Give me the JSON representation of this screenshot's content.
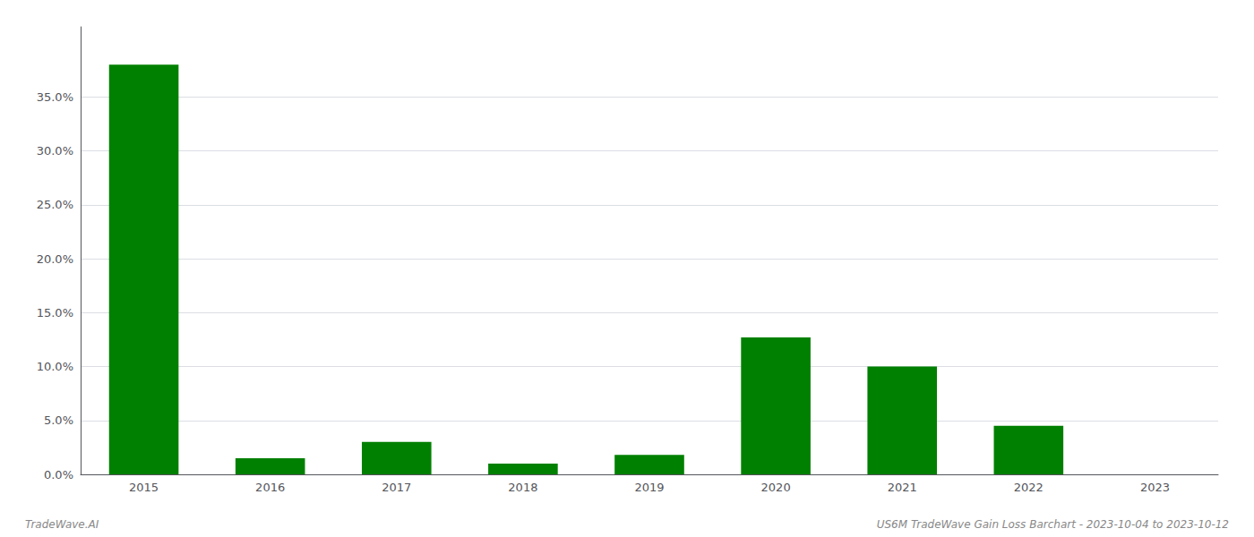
{
  "chart_data": {
    "type": "bar",
    "categories": [
      "2015",
      "2016",
      "2017",
      "2018",
      "2019",
      "2020",
      "2021",
      "2022",
      "2023"
    ],
    "values": [
      0.38,
      0.015,
      0.03,
      0.01,
      0.018,
      0.127,
      0.1,
      0.045,
      0.0
    ],
    "color": "#008000",
    "ylim": [
      0,
      0.415
    ],
    "yticks": [
      {
        "value": 0.0,
        "label": "0.0%"
      },
      {
        "value": 0.05,
        "label": "5.0%"
      },
      {
        "value": 0.1,
        "label": "10.0%"
      },
      {
        "value": 0.15,
        "label": "15.0%"
      },
      {
        "value": 0.2,
        "label": "20.0%"
      },
      {
        "value": 0.25,
        "label": "25.0%"
      },
      {
        "value": 0.3,
        "label": "30.0%"
      },
      {
        "value": 0.35,
        "label": "35.0%"
      }
    ],
    "grid": true,
    "annotations": [
      "TradeWave.AI",
      "US6M TradeWave Gain Loss Barchart - 2023-10-04 to 2023-10-12"
    ]
  }
}
